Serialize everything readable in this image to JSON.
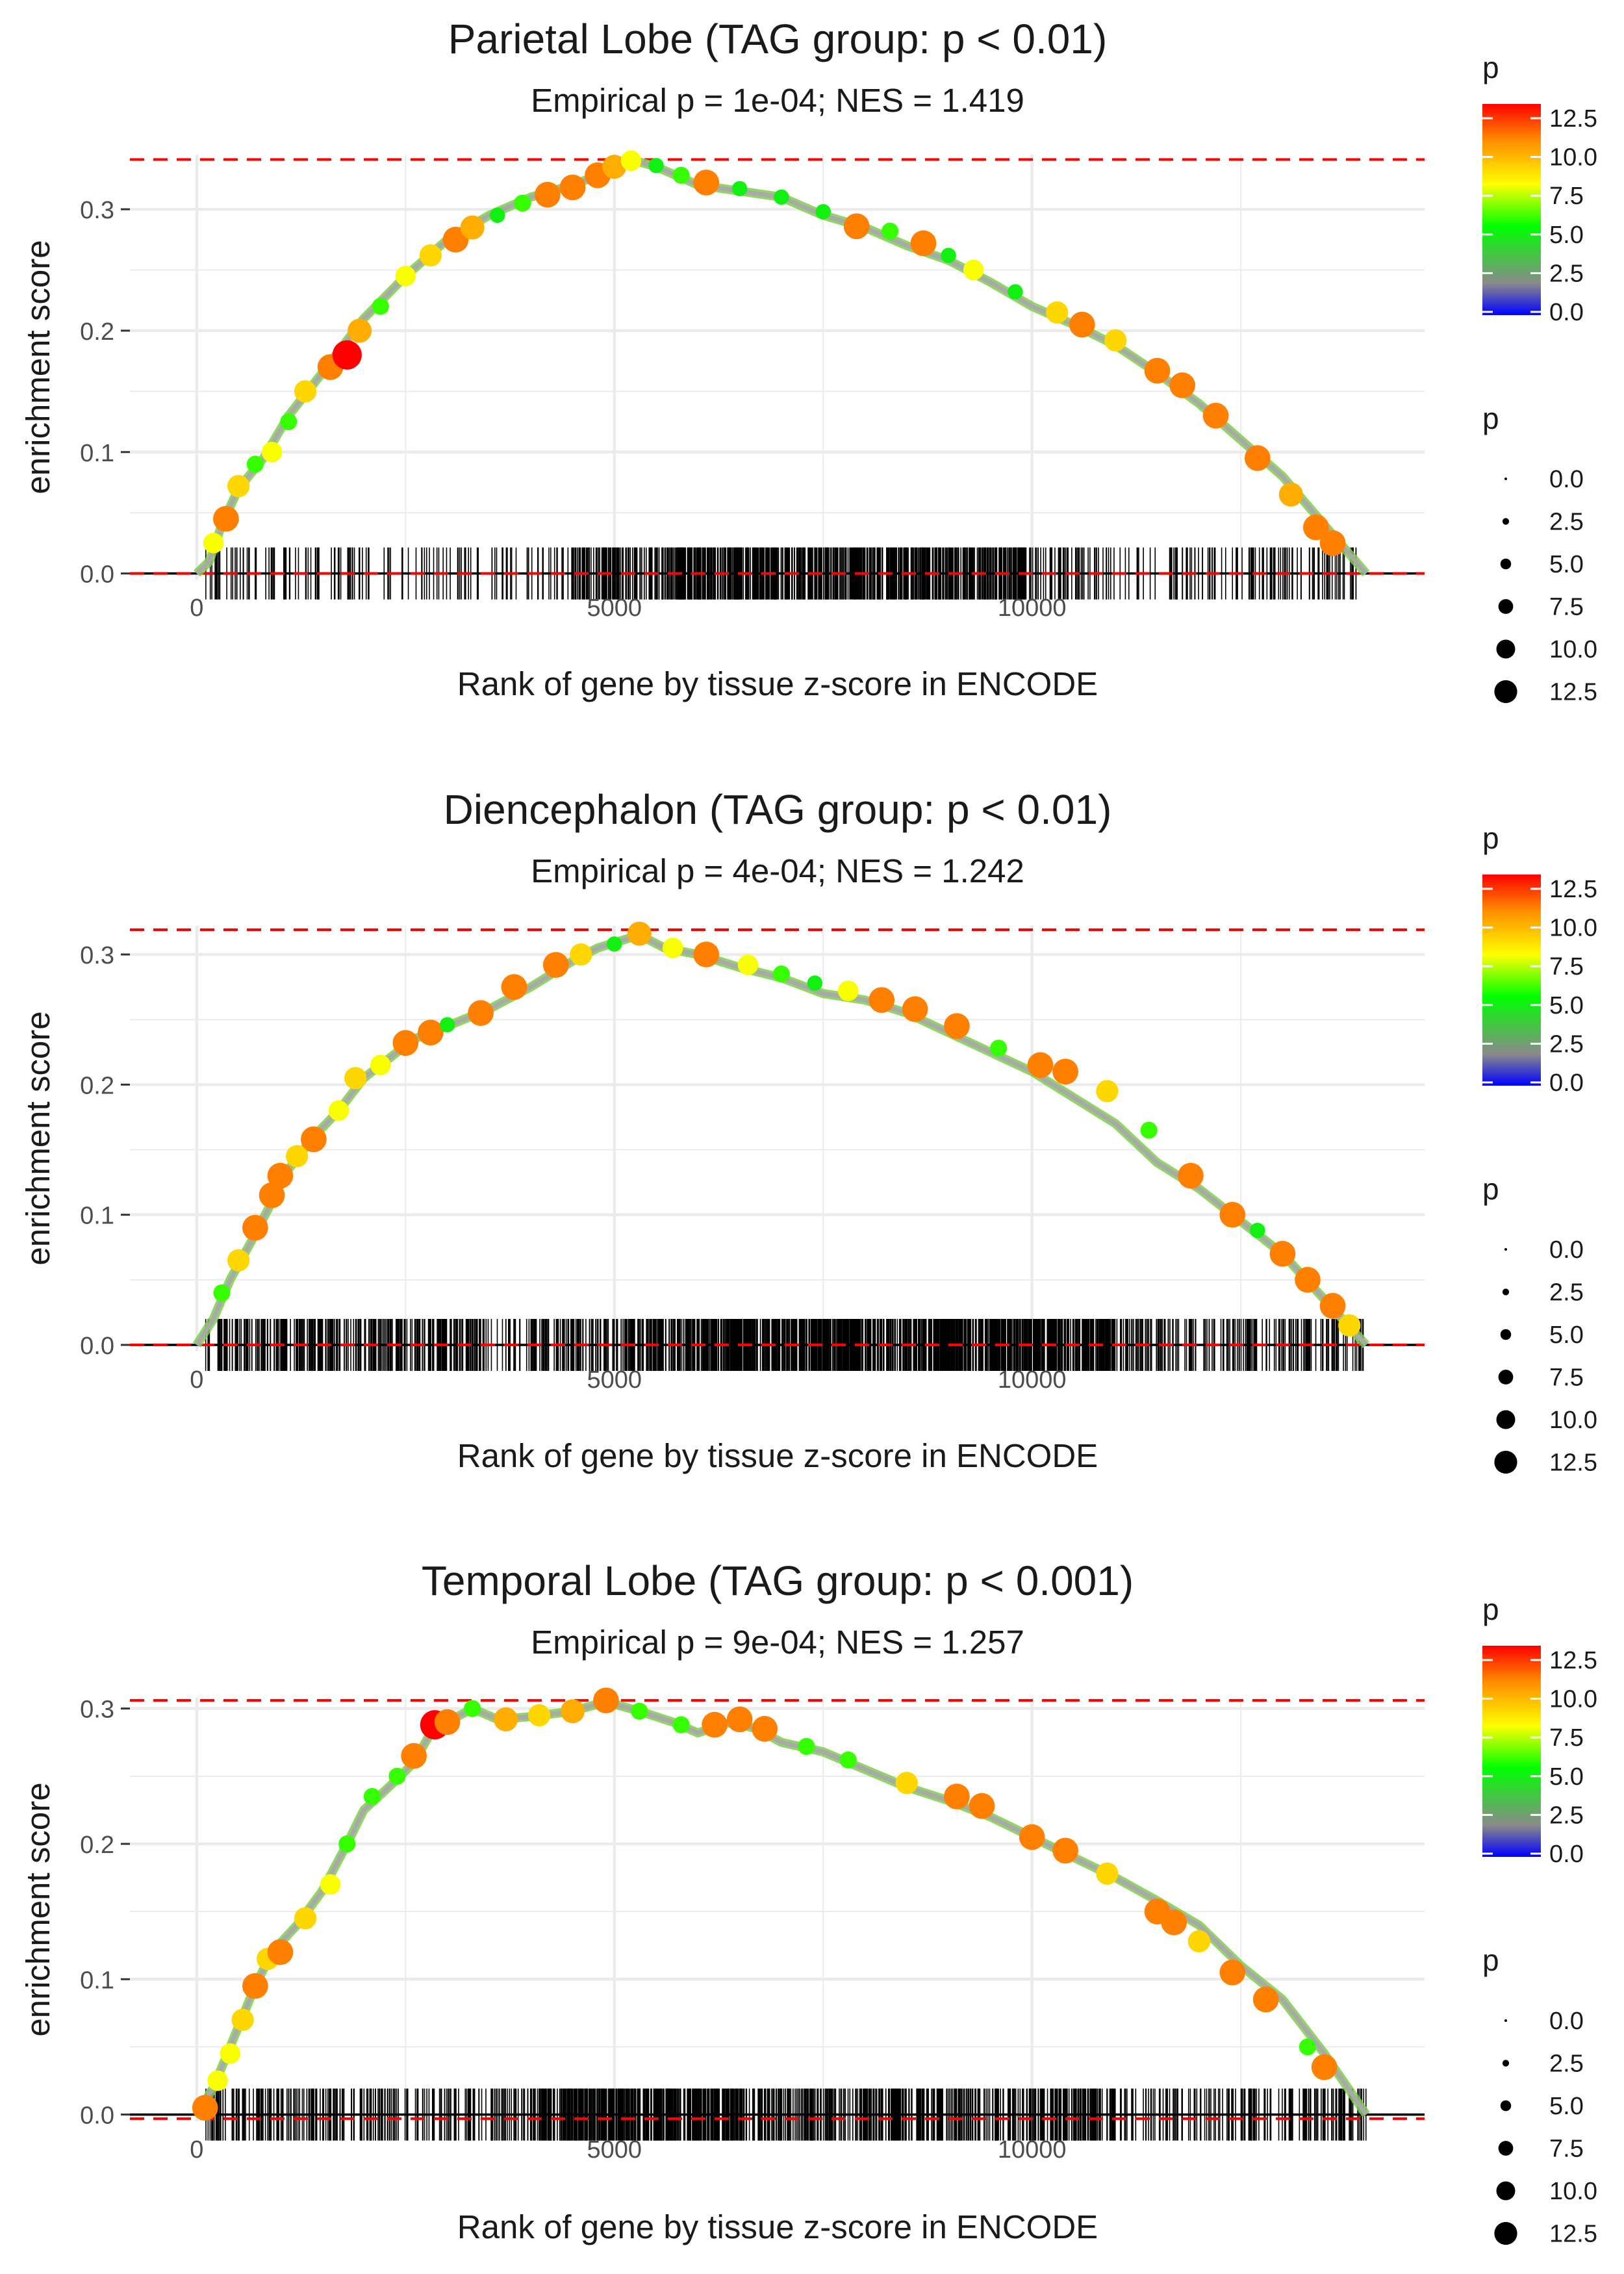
{
  "colors": {
    "gradient": [
      "#0000ff",
      "#8a8a8a",
      "#00ff00",
      "#ffff00",
      "#ff8c00",
      "#ff0000"
    ],
    "ref_line": "#ff0000",
    "grid": "#ebebeb",
    "ticks": "#000000"
  },
  "legend": {
    "color_title": "p",
    "color_labels": [
      "12.5",
      "10.0",
      "7.5",
      "5.0",
      "2.5",
      "0.0"
    ],
    "size_title": "p",
    "size_labels": [
      "0.0",
      "2.5",
      "5.0",
      "7.5",
      "10.0",
      "12.5"
    ]
  },
  "chart_data": [
    {
      "type": "scatter",
      "title": "Parietal Lobe (TAG group: p < 0.01)",
      "subtitle": "Empirical p = 1e-04; NES = 1.419",
      "xlabel": "Rank of gene by tissue z-score in ENCODE",
      "ylabel": "enrichment score",
      "xlim": [
        -800,
        14700
      ],
      "ylim": [
        -0.005,
        0.345
      ],
      "x_ticks": [
        "0",
        "5000",
        "10000"
      ],
      "y_ticks": [
        "0.0",
        "0.1",
        "0.2",
        "0.3"
      ],
      "max_es": 0.341,
      "min_es": 0.0,
      "curve": [
        [
          0,
          0
        ],
        [
          150,
          0.01
        ],
        [
          300,
          0.04
        ],
        [
          500,
          0.07
        ],
        [
          800,
          0.095
        ],
        [
          1100,
          0.13
        ],
        [
          1500,
          0.165
        ],
        [
          2000,
          0.21
        ],
        [
          2500,
          0.245
        ],
        [
          3000,
          0.275
        ],
        [
          3500,
          0.295
        ],
        [
          4000,
          0.31
        ],
        [
          4500,
          0.32
        ],
        [
          5000,
          0.333
        ],
        [
          5200,
          0.341
        ],
        [
          5500,
          0.335
        ],
        [
          6000,
          0.32
        ],
        [
          6500,
          0.315
        ],
        [
          7000,
          0.31
        ],
        [
          7500,
          0.295
        ],
        [
          8000,
          0.285
        ],
        [
          8500,
          0.27
        ],
        [
          9000,
          0.258
        ],
        [
          9500,
          0.24
        ],
        [
          10000,
          0.22
        ],
        [
          10500,
          0.205
        ],
        [
          11000,
          0.188
        ],
        [
          11500,
          0.165
        ],
        [
          12000,
          0.14
        ],
        [
          12500,
          0.11
        ],
        [
          13000,
          0.08
        ],
        [
          13500,
          0.04
        ],
        [
          14000,
          0.0
        ]
      ],
      "points": [
        [
          200,
          0.025,
          8
        ],
        [
          350,
          0.045,
          11
        ],
        [
          500,
          0.072,
          9
        ],
        [
          700,
          0.09,
          6
        ],
        [
          900,
          0.1,
          8
        ],
        [
          1100,
          0.125,
          6
        ],
        [
          1300,
          0.15,
          9
        ],
        [
          1600,
          0.17,
          11
        ],
        [
          1800,
          0.18,
          13
        ],
        [
          1950,
          0.2,
          10
        ],
        [
          2200,
          0.22,
          6
        ],
        [
          2500,
          0.245,
          8
        ],
        [
          2800,
          0.262,
          9
        ],
        [
          3100,
          0.275,
          11
        ],
        [
          3300,
          0.285,
          10
        ],
        [
          3600,
          0.295,
          5
        ],
        [
          3900,
          0.305,
          6
        ],
        [
          4200,
          0.312,
          11
        ],
        [
          4500,
          0.318,
          11
        ],
        [
          4800,
          0.328,
          11
        ],
        [
          5000,
          0.335,
          10
        ],
        [
          5200,
          0.34,
          8
        ],
        [
          5500,
          0.336,
          5
        ],
        [
          5800,
          0.328,
          6
        ],
        [
          6100,
          0.322,
          11
        ],
        [
          6500,
          0.317,
          5
        ],
        [
          7000,
          0.31,
          5
        ],
        [
          7500,
          0.298,
          5
        ],
        [
          7900,
          0.286,
          11
        ],
        [
          8300,
          0.282,
          6
        ],
        [
          8700,
          0.272,
          11
        ],
        [
          9000,
          0.262,
          5
        ],
        [
          9300,
          0.25,
          8
        ],
        [
          9800,
          0.232,
          5
        ],
        [
          10300,
          0.215,
          9
        ],
        [
          10600,
          0.205,
          11
        ],
        [
          11000,
          0.192,
          9
        ],
        [
          11500,
          0.167,
          11
        ],
        [
          11800,
          0.155,
          11
        ],
        [
          12200,
          0.13,
          11
        ],
        [
          12700,
          0.095,
          11
        ],
        [
          13100,
          0.065,
          10
        ],
        [
          13400,
          0.038,
          11
        ],
        [
          13600,
          0.025,
          11
        ]
      ],
      "rug": [
        [
          100,
          4500,
          3
        ],
        [
          4500,
          5600,
          10
        ],
        [
          5600,
          10000,
          14
        ],
        [
          10000,
          14000,
          4
        ]
      ]
    },
    {
      "type": "scatter",
      "title": "Diencephalon (TAG group: p < 0.01)",
      "subtitle": "Empirical p = 4e-04; NES = 1.242",
      "xlabel": "Rank of gene by tissue z-score in ENCODE",
      "ylabel": "enrichment score",
      "xlim": [
        -800,
        14700
      ],
      "ylim": [
        -0.005,
        0.322
      ],
      "x_ticks": [
        "0",
        "5000",
        "10000"
      ],
      "y_ticks": [
        "0.0",
        "0.1",
        "0.2",
        "0.3"
      ],
      "max_es": 0.319,
      "min_es": 0.0,
      "curve": [
        [
          0,
          0
        ],
        [
          200,
          0.02
        ],
        [
          400,
          0.05
        ],
        [
          700,
          0.085
        ],
        [
          900,
          0.11
        ],
        [
          1100,
          0.135
        ],
        [
          1400,
          0.16
        ],
        [
          1700,
          0.18
        ],
        [
          2000,
          0.205
        ],
        [
          2300,
          0.22
        ],
        [
          2600,
          0.235
        ],
        [
          3000,
          0.245
        ],
        [
          3500,
          0.258
        ],
        [
          4000,
          0.275
        ],
        [
          4500,
          0.295
        ],
        [
          4800,
          0.305
        ],
        [
          5300,
          0.315
        ],
        [
          5600,
          0.305
        ],
        [
          6000,
          0.3
        ],
        [
          6500,
          0.29
        ],
        [
          7000,
          0.282
        ],
        [
          7500,
          0.27
        ],
        [
          8000,
          0.265
        ],
        [
          8500,
          0.255
        ],
        [
          9000,
          0.24
        ],
        [
          9500,
          0.225
        ],
        [
          10000,
          0.21
        ],
        [
          10500,
          0.19
        ],
        [
          11000,
          0.17
        ],
        [
          11500,
          0.14
        ],
        [
          12000,
          0.12
        ],
        [
          12500,
          0.095
        ],
        [
          13000,
          0.07
        ],
        [
          13500,
          0.035
        ],
        [
          14000,
          0.0
        ]
      ],
      "points": [
        [
          300,
          0.04,
          6
        ],
        [
          500,
          0.065,
          9
        ],
        [
          700,
          0.09,
          11
        ],
        [
          900,
          0.115,
          11
        ],
        [
          1000,
          0.13,
          11
        ],
        [
          1200,
          0.145,
          9
        ],
        [
          1400,
          0.158,
          11
        ],
        [
          1700,
          0.18,
          8
        ],
        [
          1900,
          0.205,
          9
        ],
        [
          2200,
          0.215,
          8
        ],
        [
          2500,
          0.232,
          11
        ],
        [
          2800,
          0.24,
          11
        ],
        [
          3000,
          0.246,
          5
        ],
        [
          3400,
          0.255,
          11
        ],
        [
          3800,
          0.275,
          11
        ],
        [
          4300,
          0.292,
          11
        ],
        [
          4600,
          0.3,
          9
        ],
        [
          5000,
          0.308,
          5
        ],
        [
          5300,
          0.316,
          10
        ],
        [
          5700,
          0.305,
          8
        ],
        [
          6100,
          0.3,
          11
        ],
        [
          6600,
          0.292,
          8
        ],
        [
          7000,
          0.285,
          6
        ],
        [
          7400,
          0.278,
          5
        ],
        [
          7800,
          0.272,
          8
        ],
        [
          8200,
          0.265,
          11
        ],
        [
          8600,
          0.258,
          11
        ],
        [
          9100,
          0.245,
          11
        ],
        [
          9600,
          0.228,
          6
        ],
        [
          10100,
          0.215,
          11
        ],
        [
          10400,
          0.21,
          11
        ],
        [
          10900,
          0.195,
          9
        ],
        [
          11400,
          0.165,
          6
        ],
        [
          11900,
          0.13,
          11
        ],
        [
          12400,
          0.1,
          11
        ],
        [
          12700,
          0.088,
          5
        ],
        [
          13000,
          0.07,
          11
        ],
        [
          13300,
          0.05,
          11
        ],
        [
          13600,
          0.03,
          11
        ],
        [
          13800,
          0.015,
          9
        ]
      ],
      "rug": [
        [
          100,
          4000,
          8
        ],
        [
          4000,
          6000,
          10
        ],
        [
          6000,
          11000,
          16
        ],
        [
          11000,
          14000,
          6
        ]
      ]
    },
    {
      "type": "scatter",
      "title": "Temporal Lobe (TAG group: p < 0.001)",
      "subtitle": "Empirical p = 9e-04; NES = 1.257",
      "xlabel": "Rank of gene by tissue z-score in ENCODE",
      "ylabel": "enrichment score",
      "xlim": [
        -800,
        14700
      ],
      "ylim": [
        -0.005,
        0.308
      ],
      "x_ticks": [
        "0",
        "5000",
        "10000"
      ],
      "y_ticks": [
        "0.0",
        "0.1",
        "0.2",
        "0.3"
      ],
      "max_es": 0.306,
      "min_es": -0.003,
      "curve": [
        [
          0,
          0
        ],
        [
          200,
          0.02
        ],
        [
          400,
          0.05
        ],
        [
          700,
          0.095
        ],
        [
          900,
          0.12
        ],
        [
          1200,
          0.14
        ],
        [
          1500,
          0.165
        ],
        [
          1800,
          0.2
        ],
        [
          2000,
          0.225
        ],
        [
          2300,
          0.242
        ],
        [
          2600,
          0.26
        ],
        [
          2800,
          0.282
        ],
        [
          3000,
          0.29
        ],
        [
          3300,
          0.3
        ],
        [
          3600,
          0.292
        ],
        [
          4000,
          0.294
        ],
        [
          4500,
          0.298
        ],
        [
          4900,
          0.305
        ],
        [
          5300,
          0.298
        ],
        [
          5700,
          0.29
        ],
        [
          6000,
          0.282
        ],
        [
          6400,
          0.29
        ],
        [
          6700,
          0.285
        ],
        [
          7000,
          0.275
        ],
        [
          7500,
          0.268
        ],
        [
          8000,
          0.255
        ],
        [
          8500,
          0.242
        ],
        [
          9000,
          0.232
        ],
        [
          9500,
          0.22
        ],
        [
          10000,
          0.205
        ],
        [
          10500,
          0.19
        ],
        [
          11000,
          0.175
        ],
        [
          11500,
          0.158
        ],
        [
          12000,
          0.14
        ],
        [
          12500,
          0.11
        ],
        [
          13000,
          0.085
        ],
        [
          13500,
          0.045
        ],
        [
          14000,
          0.0
        ]
      ],
      "points": [
        [
          100,
          0.005,
          11
        ],
        [
          250,
          0.025,
          8
        ],
        [
          400,
          0.045,
          8
        ],
        [
          550,
          0.07,
          9
        ],
        [
          700,
          0.095,
          11
        ],
        [
          850,
          0.115,
          9
        ],
        [
          1000,
          0.12,
          11
        ],
        [
          1300,
          0.145,
          9
        ],
        [
          1600,
          0.17,
          8
        ],
        [
          1800,
          0.2,
          6
        ],
        [
          2100,
          0.235,
          6
        ],
        [
          2400,
          0.25,
          6
        ],
        [
          2600,
          0.265,
          11
        ],
        [
          2850,
          0.288,
          13
        ],
        [
          3000,
          0.29,
          11
        ],
        [
          3300,
          0.3,
          6
        ],
        [
          3700,
          0.292,
          10
        ],
        [
          4100,
          0.295,
          9
        ],
        [
          4500,
          0.298,
          10
        ],
        [
          4900,
          0.306,
          11
        ],
        [
          5300,
          0.298,
          6
        ],
        [
          5800,
          0.288,
          6
        ],
        [
          6200,
          0.288,
          11
        ],
        [
          6500,
          0.292,
          11
        ],
        [
          6800,
          0.285,
          11
        ],
        [
          7300,
          0.272,
          6
        ],
        [
          7800,
          0.262,
          6
        ],
        [
          8500,
          0.245,
          9
        ],
        [
          9100,
          0.235,
          11
        ],
        [
          9400,
          0.228,
          11
        ],
        [
          10000,
          0.205,
          11
        ],
        [
          10400,
          0.195,
          11
        ],
        [
          10900,
          0.178,
          9
        ],
        [
          11500,
          0.15,
          11
        ],
        [
          11700,
          0.142,
          11
        ],
        [
          12000,
          0.128,
          9
        ],
        [
          12400,
          0.105,
          11
        ],
        [
          12800,
          0.085,
          11
        ],
        [
          13300,
          0.05,
          6
        ],
        [
          13500,
          0.035,
          11
        ]
      ],
      "rug": [
        [
          100,
          4000,
          6
        ],
        [
          4000,
          6500,
          16
        ],
        [
          6500,
          11000,
          10
        ],
        [
          11000,
          14000,
          5
        ]
      ]
    }
  ]
}
